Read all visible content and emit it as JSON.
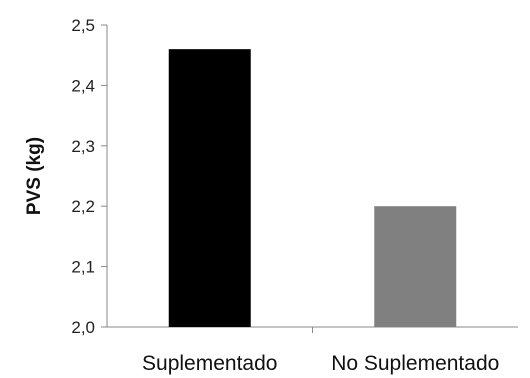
{
  "chart_data": {
    "type": "bar",
    "categories": [
      "Suplementado",
      "No Suplementado"
    ],
    "values": [
      2.46,
      2.2
    ],
    "colors": [
      "#000000",
      "#808080"
    ],
    "ylabel": "PVS (kg)",
    "ylim": [
      2.0,
      2.5
    ],
    "yticks": [
      "2,0",
      "2,1",
      "2,2",
      "2,3",
      "2,4",
      "2,5"
    ],
    "grid": false
  }
}
